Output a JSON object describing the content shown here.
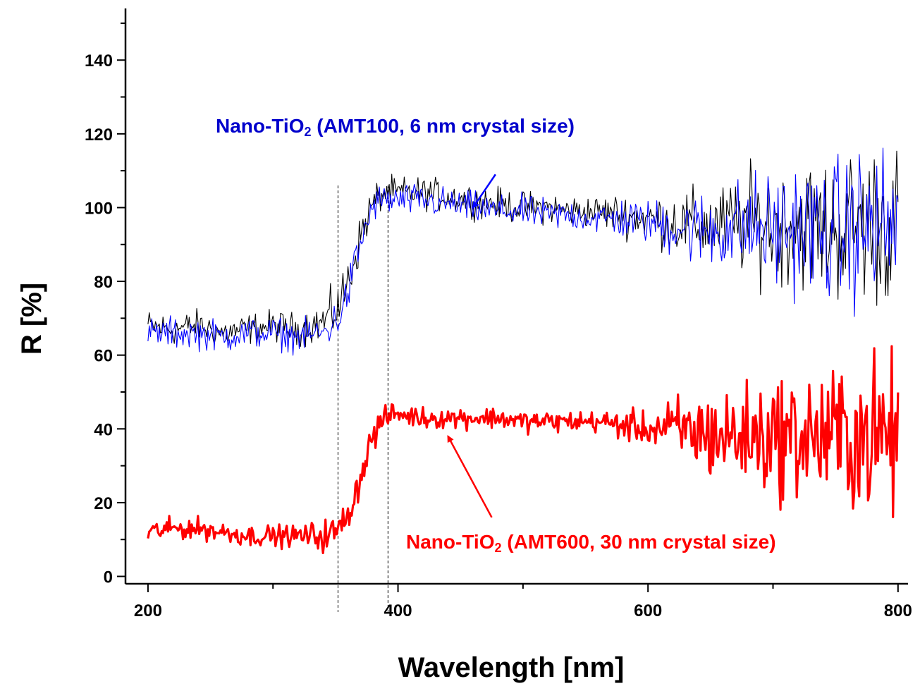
{
  "chart_data": {
    "type": "line",
    "title": "",
    "xlabel": "Wavelength [nm]",
    "ylabel": "R [%]",
    "xlim": [
      182,
      808
    ],
    "ylim": [
      -2,
      154
    ],
    "x_ticks": [
      200,
      400,
      600,
      800
    ],
    "y_ticks": [
      0,
      20,
      40,
      60,
      80,
      100,
      120,
      140
    ],
    "grid": false,
    "legend": "none",
    "series": [
      {
        "name": "Nano-TiO2 (AMT100, 6 nm crystal size)",
        "color": "#000000",
        "x": [
          200,
          220,
          240,
          260,
          280,
          300,
          320,
          340,
          350,
          355,
          360,
          365,
          370,
          375,
          380,
          385,
          390,
          395,
          400,
          420,
          440,
          460,
          480,
          500,
          520,
          540,
          560,
          580,
          600,
          620,
          640,
          660,
          680,
          700,
          720,
          740,
          760,
          780,
          800
        ],
        "y": [
          68,
          67,
          68,
          66,
          67,
          68,
          67,
          69,
          72,
          75,
          80,
          86,
          92,
          97,
          101,
          103,
          104,
          104,
          104,
          104,
          103,
          102,
          101,
          100,
          100,
          99,
          99,
          98,
          97,
          96,
          95,
          95,
          96,
          95,
          96,
          94,
          95,
          96,
          95
        ],
        "noise": [
          3,
          3,
          3,
          3,
          3,
          3,
          3,
          4,
          5,
          5,
          5,
          5,
          4,
          4,
          4,
          3,
          3,
          3,
          3,
          3,
          3,
          3,
          3,
          3,
          3,
          3,
          3,
          4,
          4,
          6,
          7,
          8,
          10,
          11,
          12,
          13,
          14,
          15,
          15
        ]
      },
      {
        "name": "Nano-TiO2 (AMT100, 6 nm crystal size)",
        "color": "#0000ff",
        "x": [
          200,
          220,
          240,
          260,
          280,
          300,
          320,
          340,
          350,
          355,
          360,
          365,
          370,
          375,
          380,
          385,
          390,
          395,
          400,
          420,
          440,
          460,
          480,
          500,
          520,
          540,
          560,
          580,
          600,
          620,
          640,
          660,
          680,
          700,
          720,
          740,
          760,
          780,
          800
        ],
        "y": [
          66,
          66,
          66,
          65,
          66,
          66,
          65,
          66,
          69,
          72,
          77,
          84,
          90,
          96,
          100,
          102,
          102,
          102,
          102,
          102,
          101,
          100,
          99,
          99,
          98,
          98,
          97,
          97,
          96,
          95,
          94,
          94,
          95,
          94,
          95,
          93,
          94,
          95,
          94
        ],
        "noise": [
          3,
          3,
          3,
          3,
          3,
          3,
          3,
          3,
          4,
          4,
          4,
          4,
          4,
          3,
          3,
          3,
          3,
          3,
          3,
          3,
          3,
          3,
          3,
          3,
          3,
          3,
          3,
          4,
          4,
          6,
          7,
          8,
          10,
          11,
          12,
          13,
          14,
          15,
          15
        ]
      },
      {
        "name": "Nano-TiO2 (AMT600, 30 nm crystal size)",
        "color": "#ff0000",
        "x": [
          200,
          220,
          240,
          260,
          280,
          300,
          320,
          340,
          350,
          355,
          360,
          365,
          370,
          375,
          380,
          385,
          390,
          395,
          400,
          420,
          440,
          460,
          480,
          500,
          520,
          540,
          560,
          580,
          600,
          620,
          640,
          660,
          680,
          700,
          720,
          740,
          760,
          780,
          800
        ],
        "y": [
          12,
          13,
          13,
          12,
          11,
          11,
          11,
          11,
          12,
          14,
          17,
          21,
          27,
          33,
          38,
          41,
          43,
          44,
          44,
          43,
          43,
          43,
          43,
          42,
          42,
          42,
          42,
          41,
          40,
          40,
          39,
          38,
          38,
          38,
          38,
          38,
          38,
          38,
          38
        ],
        "noise": [
          2,
          2,
          2,
          2,
          2,
          2,
          2,
          3,
          3,
          3,
          3,
          3,
          3,
          3,
          3,
          3,
          2,
          2,
          2,
          2,
          2,
          2,
          2,
          2,
          2,
          2,
          2,
          3,
          3,
          6,
          8,
          9,
          10,
          11,
          12,
          13,
          14,
          15,
          16
        ]
      }
    ],
    "reference_lines_x": [
      352,
      392
    ],
    "annotations": [
      {
        "prefix": "Nano-TiO",
        "subscript": "2",
        "suffix": " (AMT100, 6 nm crystal size)",
        "color": "#0000cc",
        "arrow_color": "#0000ff",
        "arrow_from": [
          478,
          109
        ],
        "arrow_to": [
          460,
          100
        ]
      },
      {
        "prefix": "Nano-TiO",
        "subscript": "2",
        "suffix": " (AMT600, 30 nm crystal size)",
        "color": "#ff0000",
        "arrow_color": "#ff0000",
        "arrow_from": [
          475,
          16
        ],
        "arrow_to": [
          440,
          38
        ]
      }
    ]
  }
}
